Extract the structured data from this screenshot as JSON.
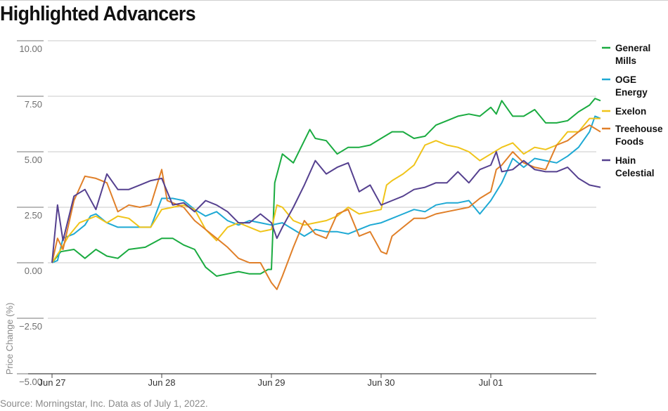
{
  "header": {
    "title": "Highlighted Advancers"
  },
  "footer": {
    "source": "Source: Morningstar, Inc. Data as of July 1, 2022."
  },
  "chart_data": {
    "type": "line",
    "title": "Highlighted Advancers",
    "xlabel": "",
    "ylabel": "Price Change (%)",
    "ylim": [
      -5.5,
      10.5
    ],
    "yticks": [
      10.0,
      7.5,
      5.0,
      2.5,
      0.0,
      -2.5,
      -5.0
    ],
    "ytick_labels": [
      "10.00",
      "7.50",
      "5.00",
      "2.50",
      "0.00",
      "−2.50",
      "−5.00"
    ],
    "xlim": [
      0,
      5
    ],
    "xticks": [
      0,
      1,
      2,
      3,
      4
    ],
    "xtick_labels": [
      "Jun 27",
      "Jun 28",
      "Jun 29",
      "Jun 30",
      "Jul 01"
    ],
    "grid": "horizontal",
    "legend_position": "right",
    "series": [
      {
        "name": "General Mills",
        "legend_lines": [
          "General",
          "Mills"
        ],
        "color": "#1aab40",
        "points": [
          [
            0,
            0
          ],
          [
            0.08,
            0.5
          ],
          [
            0.2,
            0.6
          ],
          [
            0.3,
            0.2
          ],
          [
            0.4,
            0.6
          ],
          [
            0.5,
            0.3
          ],
          [
            0.6,
            0.2
          ],
          [
            0.7,
            0.6
          ],
          [
            0.85,
            0.7
          ],
          [
            1,
            1.1
          ],
          [
            1.1,
            1.1
          ],
          [
            1.2,
            0.8
          ],
          [
            1.3,
            0.6
          ],
          [
            1.4,
            -0.2
          ],
          [
            1.5,
            -0.6
          ],
          [
            1.6,
            -0.5
          ],
          [
            1.7,
            -0.4
          ],
          [
            1.8,
            -0.5
          ],
          [
            1.9,
            -0.5
          ],
          [
            1.97,
            -0.3
          ],
          [
            2.0,
            -0.3
          ],
          [
            2.03,
            3.6
          ],
          [
            2.1,
            4.9
          ],
          [
            2.2,
            4.5
          ],
          [
            2.3,
            5.5
          ],
          [
            2.35,
            6.0
          ],
          [
            2.4,
            5.6
          ],
          [
            2.5,
            5.5
          ],
          [
            2.6,
            4.9
          ],
          [
            2.7,
            5.2
          ],
          [
            2.8,
            5.2
          ],
          [
            2.9,
            5.3
          ],
          [
            3.0,
            5.6
          ],
          [
            3.1,
            5.9
          ],
          [
            3.2,
            5.9
          ],
          [
            3.3,
            5.6
          ],
          [
            3.4,
            5.7
          ],
          [
            3.5,
            6.2
          ],
          [
            3.6,
            6.4
          ],
          [
            3.7,
            6.6
          ],
          [
            3.8,
            6.7
          ],
          [
            3.9,
            6.6
          ],
          [
            4.0,
            7.0
          ],
          [
            4.05,
            6.7
          ],
          [
            4.1,
            7.3
          ],
          [
            4.2,
            6.6
          ],
          [
            4.3,
            6.6
          ],
          [
            4.4,
            6.9
          ],
          [
            4.5,
            6.3
          ],
          [
            4.6,
            6.3
          ],
          [
            4.7,
            6.4
          ],
          [
            4.8,
            6.8
          ],
          [
            4.9,
            7.1
          ],
          [
            4.95,
            7.4
          ],
          [
            5.0,
            7.3
          ]
        ]
      },
      {
        "name": "OGE Energy",
        "legend_lines": [
          "OGE",
          "Energy"
        ],
        "color": "#1ea9d4",
        "points": [
          [
            0,
            0
          ],
          [
            0.05,
            0.1
          ],
          [
            0.1,
            1.1
          ],
          [
            0.2,
            1.3
          ],
          [
            0.3,
            1.7
          ],
          [
            0.35,
            2.1
          ],
          [
            0.4,
            2.2
          ],
          [
            0.5,
            1.8
          ],
          [
            0.6,
            1.6
          ],
          [
            0.7,
            1.6
          ],
          [
            0.8,
            1.6
          ],
          [
            0.9,
            1.6
          ],
          [
            1.0,
            2.9
          ],
          [
            1.1,
            2.9
          ],
          [
            1.2,
            2.8
          ],
          [
            1.3,
            2.4
          ],
          [
            1.4,
            2.1
          ],
          [
            1.5,
            2.3
          ],
          [
            1.6,
            1.9
          ],
          [
            1.7,
            1.7
          ],
          [
            1.8,
            1.9
          ],
          [
            1.9,
            1.8
          ],
          [
            2.0,
            1.7
          ],
          [
            2.1,
            1.8
          ],
          [
            2.2,
            1.5
          ],
          [
            2.3,
            1.2
          ],
          [
            2.4,
            1.5
          ],
          [
            2.5,
            1.4
          ],
          [
            2.6,
            1.4
          ],
          [
            2.7,
            1.3
          ],
          [
            2.8,
            1.5
          ],
          [
            2.9,
            1.7
          ],
          [
            3.0,
            1.8
          ],
          [
            3.1,
            2.0
          ],
          [
            3.2,
            2.2
          ],
          [
            3.3,
            2.4
          ],
          [
            3.4,
            2.3
          ],
          [
            3.5,
            2.6
          ],
          [
            3.6,
            2.7
          ],
          [
            3.7,
            2.7
          ],
          [
            3.8,
            2.8
          ],
          [
            3.9,
            2.2
          ],
          [
            4.0,
            2.8
          ],
          [
            4.1,
            3.6
          ],
          [
            4.2,
            4.7
          ],
          [
            4.3,
            4.3
          ],
          [
            4.4,
            4.7
          ],
          [
            4.5,
            4.6
          ],
          [
            4.6,
            4.5
          ],
          [
            4.7,
            4.8
          ],
          [
            4.8,
            5.2
          ],
          [
            4.9,
            5.9
          ],
          [
            4.95,
            6.6
          ],
          [
            5.0,
            6.5
          ]
        ]
      },
      {
        "name": "Exelon",
        "legend_lines": [
          "Exelon"
        ],
        "color": "#f0c419",
        "points": [
          [
            0,
            0
          ],
          [
            0.08,
            0.6
          ],
          [
            0.15,
            1.2
          ],
          [
            0.25,
            1.8
          ],
          [
            0.35,
            2.0
          ],
          [
            0.4,
            2.1
          ],
          [
            0.5,
            1.8
          ],
          [
            0.6,
            2.1
          ],
          [
            0.7,
            2.0
          ],
          [
            0.8,
            1.6
          ],
          [
            0.9,
            1.6
          ],
          [
            1.0,
            2.4
          ],
          [
            1.1,
            2.5
          ],
          [
            1.2,
            2.6
          ],
          [
            1.3,
            2.4
          ],
          [
            1.4,
            1.5
          ],
          [
            1.5,
            1.0
          ],
          [
            1.6,
            1.6
          ],
          [
            1.7,
            1.8
          ],
          [
            1.8,
            1.6
          ],
          [
            1.9,
            1.4
          ],
          [
            2.0,
            1.5
          ],
          [
            2.05,
            2.6
          ],
          [
            2.1,
            2.5
          ],
          [
            2.2,
            1.9
          ],
          [
            2.3,
            1.7
          ],
          [
            2.4,
            1.8
          ],
          [
            2.5,
            1.9
          ],
          [
            2.6,
            2.1
          ],
          [
            2.7,
            2.5
          ],
          [
            2.8,
            2.2
          ],
          [
            2.9,
            2.3
          ],
          [
            3.0,
            2.4
          ],
          [
            3.05,
            3.5
          ],
          [
            3.1,
            3.7
          ],
          [
            3.2,
            4.0
          ],
          [
            3.3,
            4.4
          ],
          [
            3.4,
            5.3
          ],
          [
            3.5,
            5.5
          ],
          [
            3.6,
            5.3
          ],
          [
            3.7,
            5.2
          ],
          [
            3.8,
            5.0
          ],
          [
            3.9,
            4.6
          ],
          [
            4.0,
            4.9
          ],
          [
            4.1,
            5.2
          ],
          [
            4.2,
            5.4
          ],
          [
            4.3,
            4.9
          ],
          [
            4.4,
            5.2
          ],
          [
            4.5,
            5.1
          ],
          [
            4.6,
            5.3
          ],
          [
            4.7,
            5.9
          ],
          [
            4.8,
            5.9
          ],
          [
            4.9,
            6.5
          ],
          [
            5.0,
            6.5
          ]
        ]
      },
      {
        "name": "Treehouse Foods",
        "legend_lines": [
          "Treehouse",
          "Foods"
        ],
        "color": "#e07f28",
        "points": [
          [
            0,
            0
          ],
          [
            0.05,
            1.1
          ],
          [
            0.1,
            0.6
          ],
          [
            0.2,
            2.8
          ],
          [
            0.3,
            3.9
          ],
          [
            0.4,
            3.8
          ],
          [
            0.5,
            3.6
          ],
          [
            0.6,
            2.3
          ],
          [
            0.7,
            2.6
          ],
          [
            0.8,
            2.5
          ],
          [
            0.9,
            2.6
          ],
          [
            1.0,
            4.2
          ],
          [
            1.05,
            2.8
          ],
          [
            1.1,
            2.7
          ],
          [
            1.2,
            2.5
          ],
          [
            1.3,
            1.9
          ],
          [
            1.4,
            1.5
          ],
          [
            1.5,
            1.1
          ],
          [
            1.6,
            0.7
          ],
          [
            1.7,
            0.2
          ],
          [
            1.8,
            0.0
          ],
          [
            1.9,
            0.0
          ],
          [
            2.0,
            -0.9
          ],
          [
            2.05,
            -1.2
          ],
          [
            2.1,
            -0.6
          ],
          [
            2.2,
            0.7
          ],
          [
            2.3,
            1.9
          ],
          [
            2.4,
            1.3
          ],
          [
            2.5,
            1.1
          ],
          [
            2.6,
            2.2
          ],
          [
            2.7,
            2.4
          ],
          [
            2.8,
            1.2
          ],
          [
            2.9,
            1.4
          ],
          [
            3.0,
            0.5
          ],
          [
            3.05,
            0.4
          ],
          [
            3.1,
            1.2
          ],
          [
            3.2,
            1.6
          ],
          [
            3.3,
            2.0
          ],
          [
            3.4,
            2.0
          ],
          [
            3.5,
            2.2
          ],
          [
            3.6,
            2.3
          ],
          [
            3.7,
            2.4
          ],
          [
            3.8,
            2.5
          ],
          [
            3.9,
            2.9
          ],
          [
            4.0,
            3.2
          ],
          [
            4.05,
            4.2
          ],
          [
            4.1,
            4.4
          ],
          [
            4.2,
            5.0
          ],
          [
            4.3,
            4.5
          ],
          [
            4.4,
            4.3
          ],
          [
            4.5,
            4.2
          ],
          [
            4.6,
            5.3
          ],
          [
            4.7,
            5.5
          ],
          [
            4.8,
            5.9
          ],
          [
            4.9,
            6.2
          ],
          [
            5.0,
            5.9
          ]
        ]
      },
      {
        "name": "Hain Celestial",
        "legend_lines": [
          "Hain",
          "Celestial"
        ],
        "color": "#55408f",
        "points": [
          [
            0,
            0
          ],
          [
            0.05,
            2.6
          ],
          [
            0.1,
            1.0
          ],
          [
            0.2,
            3.0
          ],
          [
            0.3,
            3.3
          ],
          [
            0.4,
            2.4
          ],
          [
            0.5,
            4.0
          ],
          [
            0.6,
            3.3
          ],
          [
            0.7,
            3.3
          ],
          [
            0.8,
            3.5
          ],
          [
            0.9,
            3.7
          ],
          [
            1.0,
            3.8
          ],
          [
            1.1,
            2.6
          ],
          [
            1.2,
            2.7
          ],
          [
            1.3,
            2.3
          ],
          [
            1.4,
            2.8
          ],
          [
            1.5,
            2.6
          ],
          [
            1.6,
            2.3
          ],
          [
            1.7,
            1.8
          ],
          [
            1.8,
            1.8
          ],
          [
            1.9,
            2.2
          ],
          [
            2.0,
            1.8
          ],
          [
            2.05,
            1.1
          ],
          [
            2.1,
            1.6
          ],
          [
            2.2,
            2.5
          ],
          [
            2.3,
            3.5
          ],
          [
            2.4,
            4.6
          ],
          [
            2.5,
            4.0
          ],
          [
            2.6,
            4.3
          ],
          [
            2.7,
            4.5
          ],
          [
            2.8,
            3.2
          ],
          [
            2.9,
            3.5
          ],
          [
            3.0,
            2.6
          ],
          [
            3.1,
            2.8
          ],
          [
            3.2,
            3.0
          ],
          [
            3.3,
            3.3
          ],
          [
            3.4,
            3.4
          ],
          [
            3.5,
            3.6
          ],
          [
            3.6,
            3.6
          ],
          [
            3.7,
            4.1
          ],
          [
            3.8,
            3.6
          ],
          [
            3.9,
            4.2
          ],
          [
            4.0,
            4.4
          ],
          [
            4.05,
            5.0
          ],
          [
            4.1,
            4.1
          ],
          [
            4.2,
            4.2
          ],
          [
            4.3,
            4.6
          ],
          [
            4.4,
            4.2
          ],
          [
            4.5,
            4.1
          ],
          [
            4.6,
            4.1
          ],
          [
            4.7,
            4.3
          ],
          [
            4.8,
            3.8
          ],
          [
            4.9,
            3.5
          ],
          [
            5.0,
            3.4
          ]
        ]
      }
    ]
  }
}
